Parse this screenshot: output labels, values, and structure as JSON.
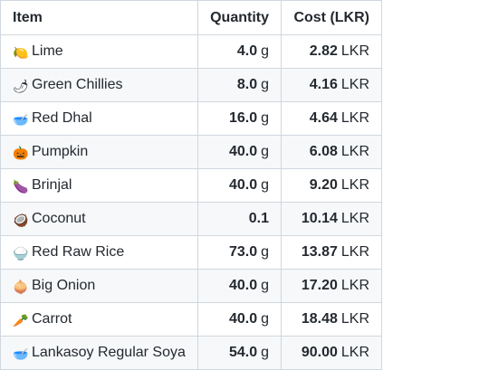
{
  "table": {
    "headers": {
      "item": "Item",
      "quantity": "Quantity",
      "cost": "Cost (LKR)"
    },
    "rows": [
      {
        "icon": "lime-icon",
        "emoji": "🍋",
        "item": "Lime",
        "qty": "4.0",
        "qty_unit": "g",
        "cost": "2.82",
        "cost_unit": "LKR"
      },
      {
        "icon": "chilli-pepper-icon",
        "emoji": "🌶",
        "item": "Green Chillies",
        "qty": "8.0",
        "qty_unit": "g",
        "cost": "4.16",
        "cost_unit": "LKR"
      },
      {
        "icon": "bowl-icon",
        "emoji": "🥣",
        "item": "Red Dhal",
        "qty": "16.0",
        "qty_unit": "g",
        "cost": "4.64",
        "cost_unit": "LKR"
      },
      {
        "icon": "pumpkin-icon",
        "emoji": "🎃",
        "item": "Pumpkin",
        "qty": "40.0",
        "qty_unit": "g",
        "cost": "6.08",
        "cost_unit": "LKR"
      },
      {
        "icon": "eggplant-icon",
        "emoji": "🍆",
        "item": "Brinjal",
        "qty": "40.0",
        "qty_unit": "g",
        "cost": "9.20",
        "cost_unit": "LKR"
      },
      {
        "icon": "coconut-icon",
        "emoji": "🥥",
        "item": "Coconut",
        "qty": "0.1",
        "qty_unit": "",
        "cost": "10.14",
        "cost_unit": "LKR"
      },
      {
        "icon": "rice-bowl-icon",
        "emoji": "🍚",
        "item": "Red Raw Rice",
        "qty": "73.0",
        "qty_unit": "g",
        "cost": "13.87",
        "cost_unit": "LKR"
      },
      {
        "icon": "onion-icon",
        "emoji": "🧅",
        "item": "Big Onion",
        "qty": "40.0",
        "qty_unit": "g",
        "cost": "17.20",
        "cost_unit": "LKR"
      },
      {
        "icon": "carrot-icon",
        "emoji": "🥕",
        "item": "Carrot",
        "qty": "40.0",
        "qty_unit": "g",
        "cost": "18.48",
        "cost_unit": "LKR"
      },
      {
        "icon": "bowl-icon",
        "emoji": "🥣",
        "item": "Lankasoy Regular Soya",
        "qty": "54.0",
        "qty_unit": "g",
        "cost": "90.00",
        "cost_unit": "LKR"
      }
    ]
  }
}
